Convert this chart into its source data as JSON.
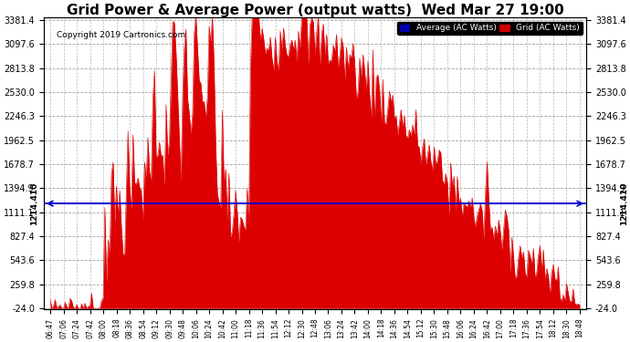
{
  "title": "Grid Power & Average Power (output watts)  Wed Mar 27 19:00",
  "copyright": "Copyright 2019 Cartronics.com",
  "average_value": 1214.41,
  "y_min": -24.0,
  "y_max": 3381.4,
  "yticks": [
    -24.0,
    259.8,
    543.6,
    827.4,
    1111.1,
    1394.9,
    1678.7,
    1962.5,
    2246.3,
    2530.0,
    2813.8,
    3097.6,
    3381.4
  ],
  "background_color": "#ffffff",
  "fill_color": "#dd0000",
  "avg_line_color": "#0000cc",
  "grid_color": "#999999",
  "title_fontsize": 11,
  "tick_fontsize": 7,
  "avg_label": "1214.410",
  "legend_labels": [
    "Average (AC Watts)",
    "Grid (AC Watts)"
  ],
  "legend_colors": [
    "#0000aa",
    "#cc0000"
  ],
  "tick_labels": [
    "06:47",
    "07:06",
    "07:24",
    "07:42",
    "08:00",
    "08:18",
    "08:36",
    "08:54",
    "09:12",
    "09:30",
    "09:48",
    "10:06",
    "10:24",
    "10:42",
    "11:00",
    "11:18",
    "11:36",
    "11:54",
    "12:12",
    "12:30",
    "12:48",
    "13:06",
    "13:24",
    "13:42",
    "14:00",
    "14:18",
    "14:36",
    "14:54",
    "15:12",
    "15:30",
    "15:48",
    "16:06",
    "16:24",
    "16:42",
    "17:00",
    "17:18",
    "17:36",
    "17:54",
    "18:12",
    "18:30",
    "18:48"
  ]
}
